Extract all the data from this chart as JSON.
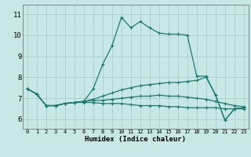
{
  "xlabel": "Humidex (Indice chaleur)",
  "xlim": [
    -0.5,
    23.5
  ],
  "ylim": [
    5.55,
    11.45
  ],
  "yticks": [
    6,
    7,
    8,
    9,
    10,
    11
  ],
  "xticks": [
    0,
    1,
    2,
    3,
    4,
    5,
    6,
    7,
    8,
    9,
    10,
    11,
    12,
    13,
    14,
    15,
    16,
    17,
    18,
    19,
    20,
    21,
    22,
    23
  ],
  "bg_color": "#c8e8e8",
  "line_color": "#1a7a6e",
  "grid_color": "#a8c8c8",
  "line1_y": [
    7.45,
    7.2,
    6.65,
    6.65,
    6.75,
    6.8,
    6.85,
    7.45,
    8.6,
    9.5,
    10.85,
    10.35,
    10.65,
    10.35,
    10.1,
    10.05,
    10.05,
    10.0,
    8.05,
    8.05,
    7.15,
    5.95,
    6.5,
    6.55
  ],
  "line3_y": [
    7.45,
    7.2,
    6.65,
    6.65,
    6.75,
    6.8,
    6.85,
    6.95,
    7.1,
    7.25,
    7.4,
    7.5,
    7.6,
    7.65,
    7.7,
    7.75,
    7.75,
    7.8,
    7.85,
    8.0,
    7.15,
    5.95,
    6.5,
    6.55
  ],
  "line4_y": [
    7.45,
    7.2,
    6.65,
    6.65,
    6.75,
    6.8,
    6.85,
    6.9,
    6.9,
    6.95,
    7.0,
    7.05,
    7.1,
    7.1,
    7.15,
    7.1,
    7.1,
    7.05,
    7.0,
    6.95,
    6.85,
    6.75,
    6.65,
    6.6
  ],
  "line5_y": [
    7.45,
    7.2,
    6.65,
    6.65,
    6.75,
    6.8,
    6.8,
    6.8,
    6.75,
    6.75,
    6.75,
    6.7,
    6.65,
    6.65,
    6.65,
    6.6,
    6.6,
    6.55,
    6.55,
    6.55,
    6.55,
    6.5,
    6.5,
    6.5
  ]
}
